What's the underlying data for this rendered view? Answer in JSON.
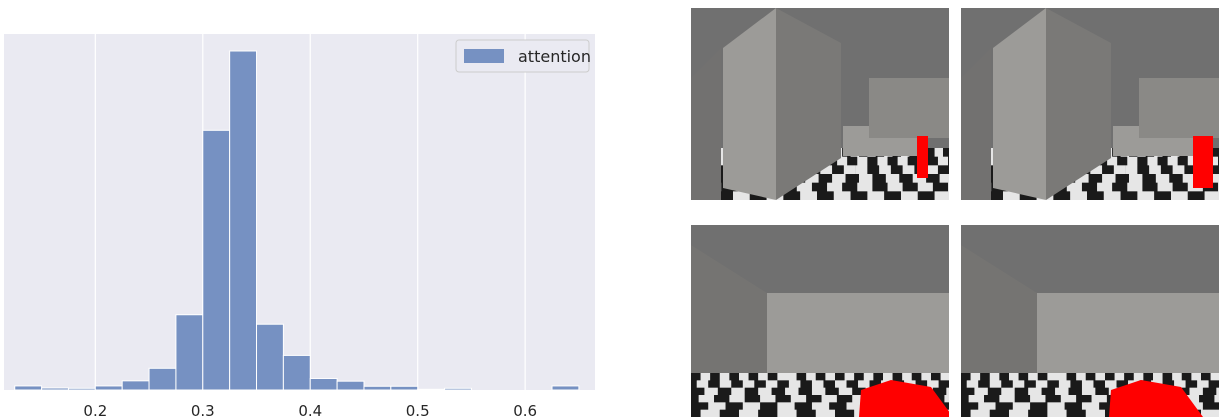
{
  "chart_data": {
    "type": "bar",
    "subtype": "histogram",
    "title": "",
    "xlabel": "",
    "ylabel": "",
    "xlim": [
      0.115,
      0.665
    ],
    "x_ticks": [
      0.2,
      0.3,
      0.4,
      0.5,
      0.6
    ],
    "x_tick_labels": [
      "0.2",
      "0.3",
      "0.4",
      "0.5",
      "0.6"
    ],
    "y_ticks_shown": false,
    "grid": true,
    "legend_position": "top-right",
    "bin_width": 0.025,
    "series": [
      {
        "name": "attention",
        "color": "#7691c2",
        "bin_edges": [
          0.125,
          0.15,
          0.175,
          0.2,
          0.225,
          0.25,
          0.275,
          0.3,
          0.325,
          0.35,
          0.375,
          0.4,
          0.425,
          0.45,
          0.475,
          0.5,
          0.525,
          0.55,
          0.575,
          0.6,
          0.625,
          0.65
        ],
        "counts": [
          1.2,
          0.6,
          0.5,
          1.2,
          2.7,
          6.4,
          22.2,
          76.6,
          100,
          19.4,
          10.2,
          3.4,
          2.6,
          1.1,
          1.1,
          0.2,
          0.5,
          0,
          0,
          0,
          1.2
        ]
      }
    ]
  },
  "frames": {
    "count": 4,
    "colors": {
      "floor_dark": "#1a1a1a",
      "floor_light": "#e6e6e6",
      "target": "#ff0000",
      "ceiling": "#707070",
      "wall": "#9c9b98"
    }
  }
}
